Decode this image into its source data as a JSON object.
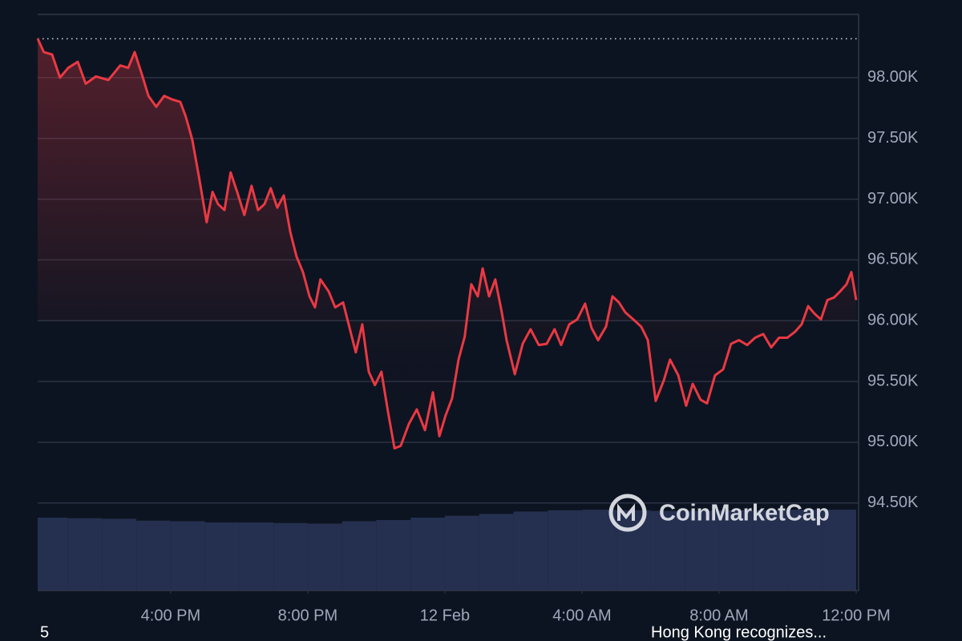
{
  "chart_data": {
    "type": "line",
    "watermark": "CoinMarketCap",
    "footer_left": "5",
    "footer_right": "Hong Kong recognizes...",
    "xlim": [
      0.12,
      24.07
    ],
    "xticks": [
      {
        "value": 4,
        "label": "4:00 PM"
      },
      {
        "value": 8,
        "label": "8:00 PM"
      },
      {
        "value": 12,
        "label": "12 Feb"
      },
      {
        "value": 16,
        "label": "4:00 AM"
      },
      {
        "value": 20,
        "label": "8:00 AM"
      },
      {
        "value": 24,
        "label": "12:00 PM"
      }
    ],
    "ylim": [
      93780,
      98520
    ],
    "yticks": [
      {
        "value": 94500,
        "label": "94.50K"
      },
      {
        "value": 95000,
        "label": "95.00K"
      },
      {
        "value": 95500,
        "label": "95.50K"
      },
      {
        "value": 96000,
        "label": "96.00K"
      },
      {
        "value": 96500,
        "label": "96.50K"
      },
      {
        "value": 97000,
        "label": "97.00K"
      },
      {
        "value": 97500,
        "label": "97.50K"
      },
      {
        "value": 98000,
        "label": "98.00K"
      }
    ],
    "grid": true,
    "series": [
      {
        "color": "#ea3943",
        "x": [
          0.12,
          0.3,
          0.54,
          0.77,
          1.01,
          1.29,
          1.52,
          1.82,
          2.18,
          2.53,
          2.76,
          2.95,
          3.18,
          3.35,
          3.58,
          3.81,
          4.05,
          4.28,
          4.44,
          4.63,
          4.82,
          5.05,
          5.22,
          5.38,
          5.57,
          5.75,
          5.94,
          6.15,
          6.36,
          6.55,
          6.74,
          6.92,
          7.11,
          7.3,
          7.49,
          7.67,
          7.86,
          8.05,
          8.21,
          8.37,
          8.61,
          8.8,
          9.03,
          9.22,
          9.4,
          9.59,
          9.78,
          9.96,
          10.15,
          10.34,
          10.53,
          10.71,
          10.95,
          11.18,
          11.42,
          11.65,
          11.84,
          12.02,
          12.21,
          12.4,
          12.58,
          12.77,
          12.96,
          13.1,
          13.29,
          13.47,
          13.66,
          13.8,
          14.04,
          14.27,
          14.5,
          14.74,
          14.97,
          15.2,
          15.39,
          15.63,
          15.86,
          16.09,
          16.28,
          16.47,
          16.7,
          16.89,
          17.08,
          17.26,
          17.5,
          17.73,
          17.92,
          18.15,
          18.39,
          18.57,
          18.81,
          19.04,
          19.23,
          19.46,
          19.65,
          19.88,
          20.12,
          20.35,
          20.58,
          20.82,
          21.05,
          21.29,
          21.52,
          21.75,
          21.99,
          22.22,
          22.41,
          22.6,
          22.78,
          22.97,
          23.16,
          23.35,
          23.53,
          23.72,
          23.86,
          24.0
        ],
        "values": [
          98320,
          98210,
          98190,
          98000,
          98080,
          98130,
          97950,
          98010,
          97980,
          98100,
          98080,
          98210,
          98010,
          97850,
          97760,
          97850,
          97820,
          97800,
          97680,
          97490,
          97190,
          96810,
          97060,
          96960,
          96910,
          97220,
          97060,
          96870,
          97110,
          96910,
          96960,
          97090,
          96930,
          97030,
          96730,
          96530,
          96400,
          96200,
          96110,
          96340,
          96240,
          96110,
          96150,
          95940,
          95740,
          95970,
          95580,
          95470,
          95580,
          95250,
          94950,
          94970,
          95150,
          95270,
          95100,
          95410,
          95050,
          95220,
          95360,
          95680,
          95870,
          96300,
          96200,
          96430,
          96200,
          96340,
          96070,
          95840,
          95560,
          95810,
          95930,
          95800,
          95810,
          95930,
          95800,
          95970,
          96010,
          96140,
          95940,
          95840,
          95950,
          96200,
          96150,
          96070,
          96010,
          95950,
          95840,
          95340,
          95510,
          95680,
          95550,
          95300,
          95480,
          95350,
          95320,
          95550,
          95600,
          95810,
          95840,
          95800,
          95860,
          95890,
          95780,
          95860,
          95860,
          95910,
          95970,
          96120,
          96060,
          96010,
          96170,
          96190,
          96240,
          96300,
          96400,
          96170
        ]
      },
      {
        "color": "#2a3558",
        "x": [
          0.5,
          1.5,
          2.5,
          3.5,
          4.5,
          5.5,
          6.5,
          7.5,
          8.5,
          9.5,
          10.5,
          11.5,
          12.5,
          13.5,
          14.5,
          15.5,
          16.5,
          17.5,
          18.5,
          19.5,
          20.5,
          21.5,
          22.5,
          23.5
        ],
        "values": [
          94380,
          94375,
          94370,
          94355,
          94350,
          94340,
          94340,
          94335,
          94330,
          94350,
          94360,
          94380,
          94395,
          94410,
          94430,
          94440,
          94445,
          94440,
          94435,
          94435,
          94440,
          94440,
          94445,
          94445
        ]
      }
    ]
  }
}
